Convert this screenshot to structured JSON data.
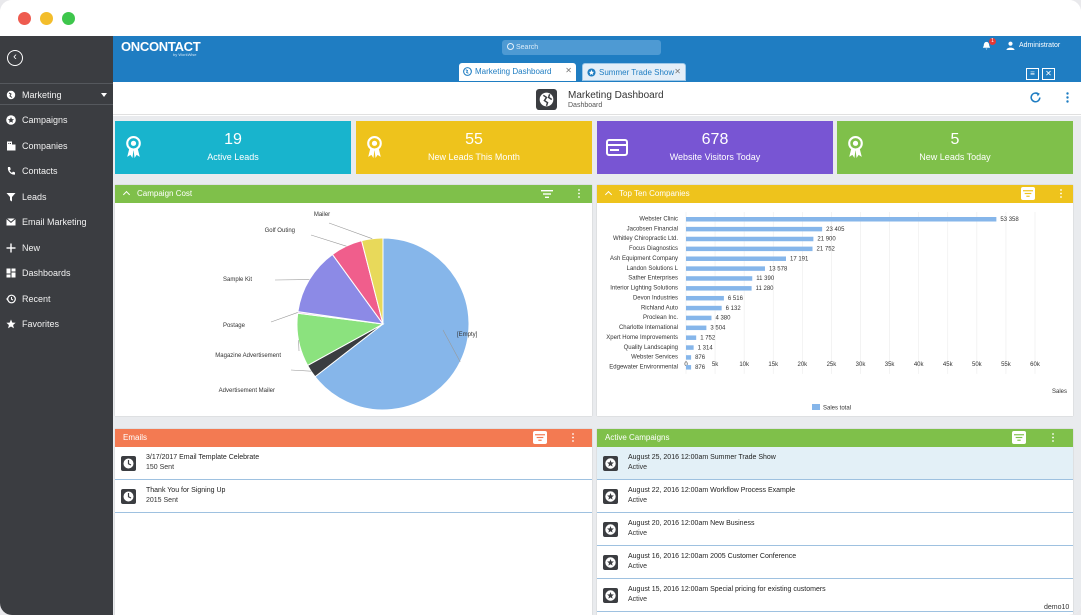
{
  "app": {
    "logo": "ONCONTACT",
    "logo_sub": "by WorkWise",
    "search_placeholder": "Search",
    "notif_count": "1",
    "user": "Administrator",
    "footer": "demo10"
  },
  "colors": {
    "topbar": "#1f7dc2",
    "sidebar": "#3b3d41",
    "cyan": "#18b4cd",
    "yellow": "#eec31c",
    "purple": "#7855d3",
    "green": "#7fc04a",
    "orange": "#f37a52",
    "bar": "#86b6ea"
  },
  "sidebar": {
    "items": [
      {
        "label": "Marketing",
        "icon": "globe-icon"
      },
      {
        "label": "Campaigns",
        "icon": "star-badge-icon"
      },
      {
        "label": "Companies",
        "icon": "building-icon"
      },
      {
        "label": "Contacts",
        "icon": "phone-icon"
      },
      {
        "label": "Leads",
        "icon": "funnel-icon"
      },
      {
        "label": "Email Marketing",
        "icon": "envelope-icon"
      },
      {
        "label": "New",
        "icon": "plus-icon"
      },
      {
        "label": "Dashboards",
        "icon": "grid-icon"
      },
      {
        "label": "Recent",
        "icon": "history-icon"
      },
      {
        "label": "Favorites",
        "icon": "star-icon"
      }
    ]
  },
  "tabs": [
    {
      "label": "Marketing Dashboard",
      "close": "✕"
    },
    {
      "label": "Summer Trade Show",
      "close": "✕"
    }
  ],
  "header": {
    "title": "Marketing Dashboard",
    "subtitle": "Dashboard"
  },
  "cards": [
    {
      "value": "19",
      "label": "Active Leads"
    },
    {
      "value": "55",
      "label": "New Leads This Month"
    },
    {
      "value": "678",
      "label": "Website Visitors Today"
    },
    {
      "value": "5",
      "label": "New Leads Today"
    }
  ],
  "panels": {
    "campaign_cost": "Campaign Cost",
    "top_companies": "Top Ten Companies",
    "emails": "Emails",
    "active_campaigns": "Active Campaigns"
  },
  "emails": [
    {
      "line1": "3/17/2017  Email Template Celebrate",
      "line2": "150 Sent"
    },
    {
      "line1": "Thank You for Signing Up",
      "line2": "2015 Sent"
    }
  ],
  "campaigns": [
    {
      "line1": "August 25, 2016 12:00am Summer Trade Show",
      "line2": "Active"
    },
    {
      "line1": "August 22, 2016 12:00am Workflow Process Example",
      "line2": "Active"
    },
    {
      "line1": "August 20, 2016 12:00am New Business",
      "line2": "Active"
    },
    {
      "line1": "August 16, 2016 12:00am 2005 Customer Conference",
      "line2": "Active"
    },
    {
      "line1": "August 15, 2016 12:00am Special pricing for existing customers",
      "line2": "Active"
    }
  ],
  "chart_data": [
    {
      "type": "pie",
      "title": "Campaign Cost",
      "slices": [
        {
          "label": "[Empty]",
          "value": 64.5,
          "color": "#86b6ea"
        },
        {
          "label": "Advertisement Mailer",
          "value": 2.5,
          "color": "#3a3c40"
        },
        {
          "label": "Magazine Advertisement",
          "value": 10,
          "color": "#8be27e"
        },
        {
          "label": "Postage",
          "value": 0.3,
          "color": "#e9b8f0"
        },
        {
          "label": "Sample Kit",
          "value": 12.7,
          "color": "#8c8ae6"
        },
        {
          "label": "Golf Outing",
          "value": 6,
          "color": "#f05e8c"
        },
        {
          "label": "Mailer",
          "value": 4,
          "color": "#e8d95a"
        }
      ]
    },
    {
      "type": "bar",
      "title": "Top Ten Companies",
      "orientation": "horizontal",
      "xlabel": "Sales",
      "xlim": [
        0,
        60000
      ],
      "ticks": [
        "0",
        "5k",
        "10k",
        "15k",
        "20k",
        "25k",
        "30k",
        "35k",
        "40k",
        "45k",
        "50k",
        "55k",
        "60k"
      ],
      "categories": [
        "Webster Clinic",
        "Jacobsen Financial",
        "Whitley Chiropractic Ltd.",
        "Focus Diagnostics",
        "Ash Equipment Company",
        "Landon Solutions L",
        "Sather Enterprises",
        "Interior Lighting Solutions",
        "Devon Industries",
        "Richland Auto",
        "Proclean Inc.",
        "Charlotte International",
        "Xpert Home Improvements",
        "Quality Landscaping",
        "Webster Services",
        "Edgewater Environmental"
      ],
      "values": [
        53358,
        23405,
        21900,
        21752,
        17191,
        13578,
        11390,
        11280,
        6516,
        6132,
        4380,
        3504,
        1752,
        1314,
        876,
        876
      ],
      "value_labels": [
        "53 358",
        "23 405",
        "21 900",
        "21 752",
        "17 191",
        "13 578",
        "11 390",
        "11 280",
        "6 516",
        "6 132",
        "4 380",
        "3 504",
        "1 752",
        "1 314",
        "876",
        "876"
      ],
      "series": [
        {
          "name": "Sales total",
          "values": [
            53358,
            23405,
            21900,
            21752,
            17191,
            13578,
            11390,
            11280,
            6516,
            6132,
            4380,
            3504,
            1752,
            1314,
            876,
            876
          ]
        }
      ],
      "legend": "bottom"
    }
  ]
}
